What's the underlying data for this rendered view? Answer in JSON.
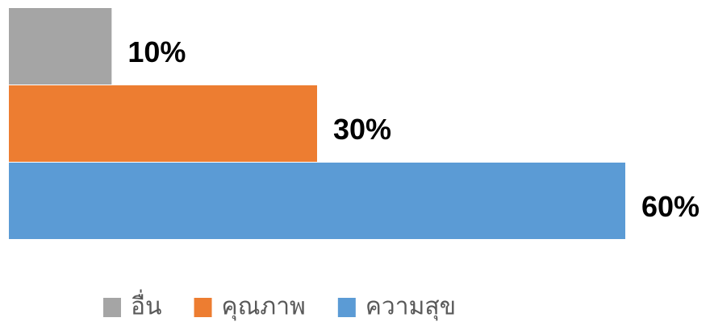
{
  "chart_data": {
    "type": "bar",
    "orientation": "horizontal",
    "series": [
      {
        "name": "อื่น",
        "color": "#a5a5a5",
        "values": [
          10
        ],
        "value_labels": [
          "10%"
        ]
      },
      {
        "name": "คุณภาพ",
        "color": "#ed7d31",
        "values": [
          30
        ],
        "value_labels": [
          "30%"
        ]
      },
      {
        "name": "ความสุข",
        "color": "#5b9bd5",
        "values": [
          60
        ],
        "value_labels": [
          "60%"
        ]
      }
    ],
    "xlim": [
      0,
      60
    ],
    "legend": "bottom"
  }
}
